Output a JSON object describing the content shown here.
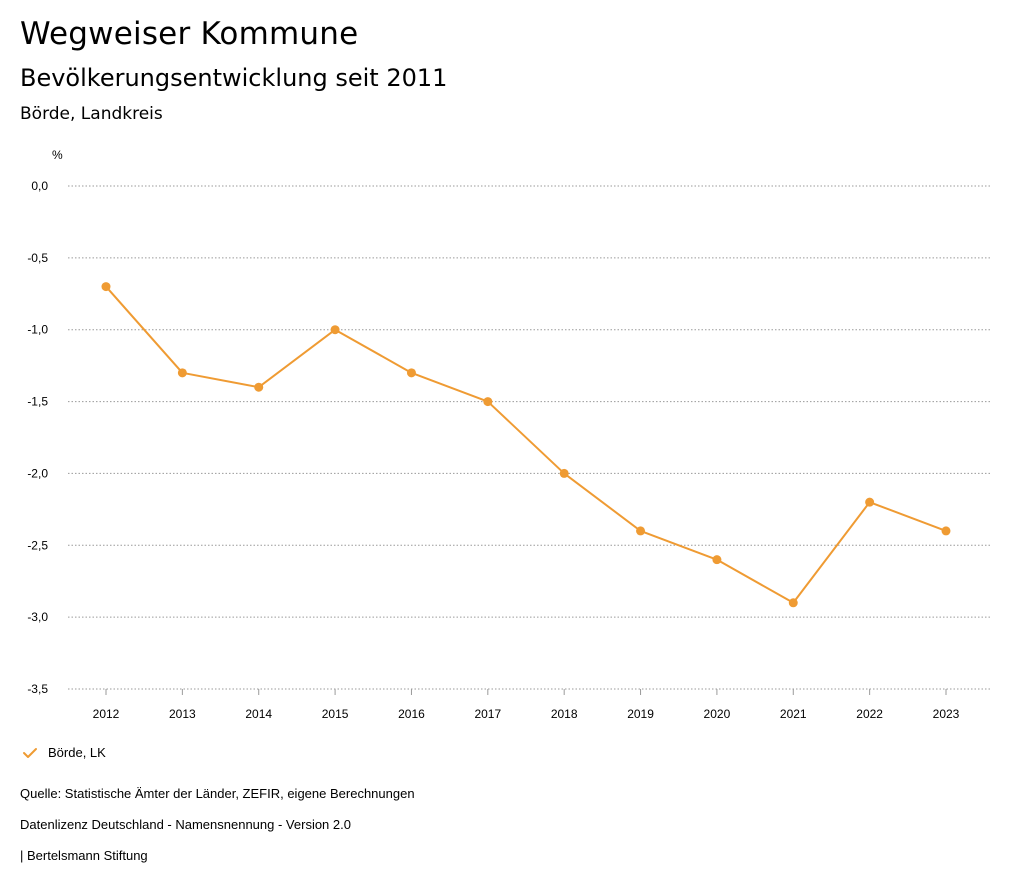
{
  "header": {
    "title": "Wegweiser Kommune",
    "subtitle": "Bevölkerungsentwicklung seit 2011",
    "region": "Börde, Landkreis"
  },
  "chart_data": {
    "type": "line",
    "title": "Bevölkerungsentwicklung seit 2011",
    "unit_label": "%",
    "xlabel": "",
    "ylabel": "%",
    "x": [
      "2012",
      "2013",
      "2014",
      "2015",
      "2016",
      "2017",
      "2018",
      "2019",
      "2020",
      "2021",
      "2022",
      "2023"
    ],
    "series": [
      {
        "name": "Börde, LK",
        "color": "#ef9b33",
        "values": [
          -0.7,
          -1.3,
          -1.4,
          -1.0,
          -1.3,
          -1.5,
          -2.0,
          -2.4,
          -2.6,
          -2.9,
          -2.2,
          -2.4
        ]
      }
    ],
    "ylim": [
      -3.5,
      0.0
    ],
    "yticks": [
      0.0,
      -0.5,
      -1.0,
      -1.5,
      -2.0,
      -2.5,
      -3.0,
      -3.5
    ],
    "ytick_labels": [
      "0,0",
      "-0,5",
      "-1,0",
      "-1,5",
      "-2,0",
      "-2,5",
      "-3,0",
      "-3,5"
    ],
    "grid": true,
    "grid_style": "dotted",
    "legend_position": "bottom-left"
  },
  "legend": {
    "label": "Börde, LK",
    "icon": "check-icon",
    "color": "#ef9b33"
  },
  "footer": {
    "source": "Quelle: Statistische Ämter der Länder, ZEFIR, eigene Berechnungen",
    "license": "Datenlizenz Deutschland - Namensnennung - Version 2.0",
    "publisher": "| Bertelsmann Stiftung"
  }
}
